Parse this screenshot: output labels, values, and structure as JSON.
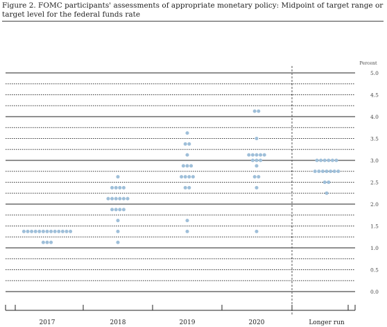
{
  "chart_data": {
    "type": "scatter",
    "title": "Figure 2. FOMC participants' assessments of appropriate monetary policy: Midpoint of target range or target level for the federal funds rate",
    "ylabel": "Percent",
    "ylim": [
      0,
      5
    ],
    "yticks": [
      "0.0",
      "0.5",
      "1.0",
      "1.5",
      "2.0",
      "2.5",
      "3.0",
      "3.5",
      "4.0",
      "4.5",
      "5.0"
    ],
    "categories": [
      "2017",
      "2018",
      "2019",
      "2020",
      "Longer run"
    ],
    "dot_color": "#9fbfd9",
    "dots": [
      {
        "category": "2017",
        "points": [
          {
            "y": 1.375,
            "count": 13
          },
          {
            "y": 1.125,
            "count": 3
          }
        ]
      },
      {
        "category": "2018",
        "points": [
          {
            "y": 2.625,
            "count": 1
          },
          {
            "y": 2.375,
            "count": 4
          },
          {
            "y": 2.125,
            "count": 6
          },
          {
            "y": 1.875,
            "count": 4
          },
          {
            "y": 1.625,
            "count": 1
          },
          {
            "y": 1.375,
            "count": 1
          },
          {
            "y": 1.125,
            "count": 1
          }
        ]
      },
      {
        "category": "2019",
        "points": [
          {
            "y": 3.625,
            "count": 1
          },
          {
            "y": 3.375,
            "count": 2
          },
          {
            "y": 3.125,
            "count": 1
          },
          {
            "y": 2.875,
            "count": 3
          },
          {
            "y": 2.625,
            "count": 4
          },
          {
            "y": 2.375,
            "count": 2
          },
          {
            "y": 1.625,
            "count": 1
          },
          {
            "y": 1.375,
            "count": 1
          }
        ]
      },
      {
        "category": "2020",
        "points": [
          {
            "y": 4.125,
            "count": 2
          },
          {
            "y": 3.5,
            "count": 1
          },
          {
            "y": 3.125,
            "count": 5
          },
          {
            "y": 3.0,
            "count": 3
          },
          {
            "y": 2.875,
            "count": 1
          },
          {
            "y": 2.625,
            "count": 2
          },
          {
            "y": 2.375,
            "count": 1
          },
          {
            "y": 1.375,
            "count": 1
          }
        ]
      },
      {
        "category": "Longer run",
        "points": [
          {
            "y": 3.0,
            "count": 6
          },
          {
            "y": 2.75,
            "count": 7
          },
          {
            "y": 2.5,
            "count": 2
          },
          {
            "y": 2.25,
            "count": 1
          }
        ]
      }
    ]
  }
}
